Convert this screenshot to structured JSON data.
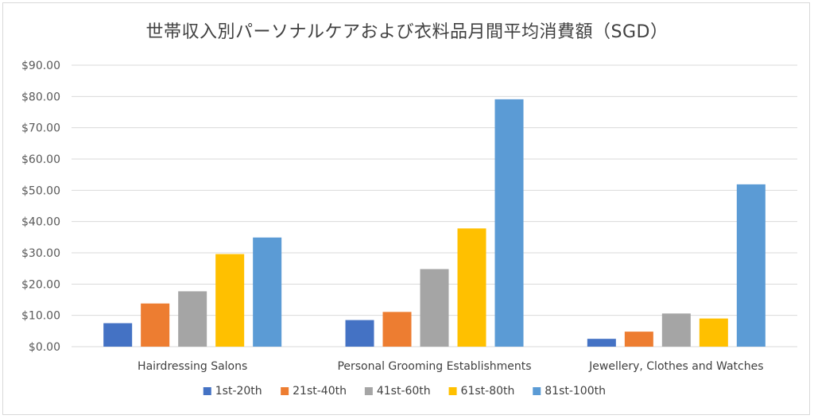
{
  "chart_data": {
    "type": "bar",
    "title": "世帯収入別パーソナルケアおよび衣料品月間平均消費額（SGD）",
    "xlabel": "",
    "ylabel": "",
    "categories": [
      "Hairdressing Salons",
      "Personal Grooming Establishments",
      "Jewellery, Clothes and Watches"
    ],
    "series": [
      {
        "name": "1st-20th",
        "color": "#4472C4",
        "values": [
          7.5,
          8.5,
          2.5
        ]
      },
      {
        "name": "21st-40th",
        "color": "#ED7D31",
        "values": [
          13.8,
          11.1,
          4.8
        ]
      },
      {
        "name": "41st-60th",
        "color": "#A5A5A5",
        "values": [
          17.7,
          24.8,
          10.6
        ]
      },
      {
        "name": "61st-80th",
        "color": "#FFC000",
        "values": [
          29.6,
          37.8,
          9.0
        ]
      },
      {
        "name": "81st-100th",
        "color": "#5B9BD5",
        "values": [
          34.9,
          79.1,
          51.9
        ]
      }
    ],
    "ylim": [
      0,
      90
    ],
    "y_ticks": [
      "$0.00",
      "$10.00",
      "$20.00",
      "$30.00",
      "$40.00",
      "$50.00",
      "$60.00",
      "$70.00",
      "$80.00",
      "$90.00"
    ],
    "grid": true,
    "legend": "bottom"
  }
}
